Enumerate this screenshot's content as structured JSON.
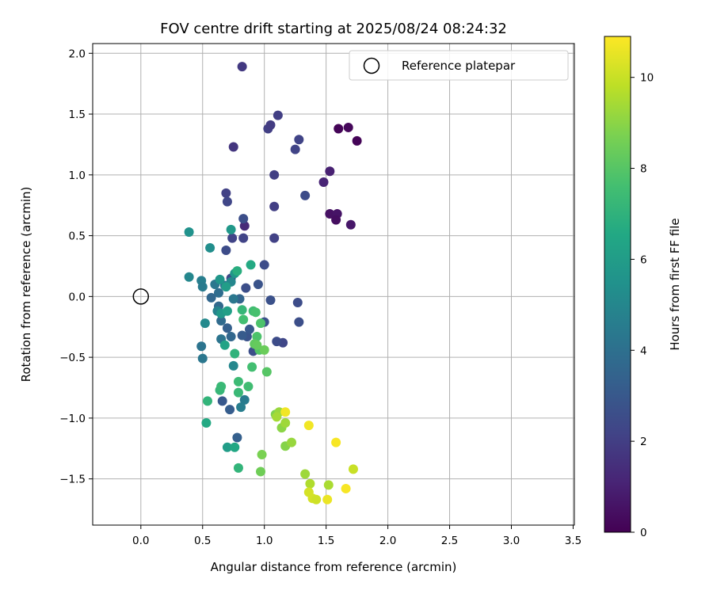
{
  "chart_data": {
    "type": "scatter",
    "title": "FOV centre drift starting at 2025/08/24 08:24:32",
    "xlabel": "Angular distance from reference (arcmin)",
    "ylabel": "Rotation from reference (arcmin)",
    "xlim": [
      -0.39,
      3.51
    ],
    "ylim": [
      -1.88,
      2.08
    ],
    "xticks": [
      0.0,
      0.5,
      1.0,
      1.5,
      2.0,
      2.5,
      3.0,
      3.5
    ],
    "xtick_labels": [
      "0.0",
      "0.5",
      "1.0",
      "1.5",
      "2.0",
      "2.5",
      "3.0",
      "3.5"
    ],
    "yticks": [
      -1.5,
      -1.0,
      -0.5,
      0.0,
      0.5,
      1.0,
      1.5,
      2.0
    ],
    "ytick_labels": [
      "−1.5",
      "−1.0",
      "−0.5",
      "0.0",
      "0.5",
      "1.0",
      "1.5",
      "2.0"
    ],
    "grid": true,
    "legend": {
      "placement": "top-right",
      "entries": [
        "Reference platepar"
      ]
    },
    "colorbar": {
      "label": "Hours from first FF file",
      "range": [
        0,
        10.9
      ],
      "ticks": [
        0,
        2,
        4,
        6,
        8,
        10
      ],
      "tick_labels": [
        "0",
        "2",
        "4",
        "6",
        "8",
        "10"
      ],
      "colormap": "viridis"
    },
    "reference_point": {
      "x": 0.0,
      "y": 0.0,
      "name": "Reference platepar"
    },
    "point_fields": [
      "x",
      "y",
      "hours"
    ],
    "points": [
      [
        1.6,
        1.38,
        0.1
      ],
      [
        1.68,
        1.39,
        0.2
      ],
      [
        1.75,
        1.28,
        0.1
      ],
      [
        1.53,
        0.68,
        0.5
      ],
      [
        1.59,
        0.68,
        0.6
      ],
      [
        1.58,
        0.63,
        0.4
      ],
      [
        1.7,
        0.59,
        0.7
      ],
      [
        1.53,
        1.03,
        1.0
      ],
      [
        1.48,
        0.94,
        1.1
      ],
      [
        0.84,
        0.58,
        1.3
      ],
      [
        0.82,
        1.89,
        1.8
      ],
      [
        0.75,
        1.23,
        1.7
      ],
      [
        1.03,
        1.38,
        2.0
      ],
      [
        1.11,
        1.49,
        2.0
      ],
      [
        1.05,
        1.41,
        1.9
      ],
      [
        1.28,
        1.29,
        2.2
      ],
      [
        1.25,
        1.21,
        2.2
      ],
      [
        1.08,
        1.0,
        2.0
      ],
      [
        1.33,
        0.83,
        2.5
      ],
      [
        0.69,
        0.85,
        2.1
      ],
      [
        0.7,
        0.78,
        2.3
      ],
      [
        1.08,
        0.74,
        2.0
      ],
      [
        0.83,
        0.64,
        2.6
      ],
      [
        0.74,
        0.48,
        2.2
      ],
      [
        0.83,
        0.48,
        2.2
      ],
      [
        1.08,
        0.48,
        2.1
      ],
      [
        0.69,
        0.38,
        2.5
      ],
      [
        1.0,
        0.26,
        2.5
      ],
      [
        0.73,
        0.15,
        2.4
      ],
      [
        0.85,
        0.07,
        2.6
      ],
      [
        0.95,
        0.1,
        2.8
      ],
      [
        1.05,
        -0.03,
        2.7
      ],
      [
        1.27,
        -0.05,
        2.5
      ],
      [
        1.28,
        -0.21,
        2.6
      ],
      [
        1.0,
        -0.21,
        2.7
      ],
      [
        1.15,
        -0.38,
        2.3
      ],
      [
        1.1,
        -0.37,
        2.5
      ],
      [
        0.91,
        -0.45,
        2.6
      ],
      [
        0.86,
        -0.33,
        2.8
      ],
      [
        0.88,
        -0.27,
        3.0
      ],
      [
        0.82,
        -0.32,
        3.1
      ],
      [
        0.66,
        -0.86,
        3.0
      ],
      [
        0.72,
        -0.93,
        3.2
      ],
      [
        0.78,
        -1.16,
        3.3
      ],
      [
        0.7,
        -0.26,
        3.3
      ],
      [
        0.73,
        -0.33,
        3.6
      ],
      [
        0.65,
        -0.2,
        3.8
      ],
      [
        0.63,
        -0.08,
        3.7
      ],
      [
        0.8,
        -0.02,
        3.5
      ],
      [
        0.63,
        0.03,
        3.9
      ],
      [
        0.57,
        -0.01,
        3.6
      ],
      [
        0.68,
        0.09,
        4.0
      ],
      [
        0.6,
        0.1,
        4.3
      ],
      [
        0.75,
        -0.02,
        4.3
      ],
      [
        0.65,
        -0.35,
        4.2
      ],
      [
        0.49,
        -0.41,
        4.2
      ],
      [
        0.5,
        -0.51,
        4.3
      ],
      [
        0.84,
        -0.85,
        4.5
      ],
      [
        0.81,
        -0.91,
        4.6
      ],
      [
        0.52,
        -0.22,
        5.1
      ],
      [
        0.49,
        0.13,
        4.6
      ],
      [
        0.5,
        0.08,
        4.5
      ],
      [
        0.39,
        0.16,
        5.0
      ],
      [
        0.73,
        0.12,
        5.0
      ],
      [
        0.62,
        -0.12,
        4.8
      ],
      [
        0.75,
        -0.57,
        5.0
      ],
      [
        0.56,
        0.4,
        5.3
      ],
      [
        0.39,
        0.53,
        5.5
      ],
      [
        0.73,
        0.55,
        5.8
      ],
      [
        0.76,
        0.19,
        5.7
      ],
      [
        0.64,
        0.14,
        5.7
      ],
      [
        0.69,
        0.08,
        6.0
      ],
      [
        0.65,
        -0.14,
        5.8
      ],
      [
        0.7,
        -0.12,
        6.1
      ],
      [
        0.68,
        -0.4,
        6.3
      ],
      [
        0.7,
        -1.24,
        6.0
      ],
      [
        0.76,
        -1.24,
        6.5
      ],
      [
        0.89,
        0.26,
        6.6
      ],
      [
        0.78,
        0.21,
        6.8
      ],
      [
        0.76,
        -0.47,
        7.0
      ],
      [
        0.53,
        -1.04,
        6.6
      ],
      [
        0.54,
        -0.86,
        7.1
      ],
      [
        0.64,
        -0.77,
        7.2
      ],
      [
        0.65,
        -0.74,
        7.3
      ],
      [
        0.79,
        -0.7,
        7.4
      ],
      [
        0.79,
        -0.79,
        7.3
      ],
      [
        0.79,
        -1.41,
        7.1
      ],
      [
        0.9,
        -0.58,
        7.6
      ],
      [
        0.87,
        -0.74,
        7.5
      ],
      [
        0.82,
        -0.11,
        7.2
      ],
      [
        0.83,
        -0.19,
        7.6
      ],
      [
        0.91,
        -0.12,
        7.5
      ],
      [
        0.93,
        -0.13,
        7.7
      ],
      [
        0.97,
        -0.22,
        7.8
      ],
      [
        0.94,
        -0.33,
        7.8
      ],
      [
        0.96,
        -0.44,
        7.9
      ],
      [
        1.02,
        -0.62,
        8.0
      ],
      [
        0.92,
        -0.39,
        8.2
      ],
      [
        0.94,
        -0.4,
        8.3
      ],
      [
        1.0,
        -0.44,
        8.4
      ],
      [
        0.97,
        -1.44,
        8.5
      ],
      [
        0.98,
        -1.3,
        8.7
      ],
      [
        1.09,
        -0.97,
        8.8
      ],
      [
        1.12,
        -0.95,
        9.2
      ],
      [
        1.1,
        -0.99,
        9.4
      ],
      [
        1.14,
        -1.08,
        9.0
      ],
      [
        1.17,
        -1.04,
        9.3
      ],
      [
        1.17,
        -1.23,
        8.9
      ],
      [
        1.22,
        -1.2,
        9.2
      ],
      [
        1.33,
        -1.46,
        9.3
      ],
      [
        1.37,
        -1.54,
        9.6
      ],
      [
        1.52,
        -1.55,
        9.5
      ],
      [
        1.36,
        -1.61,
        10.2
      ],
      [
        1.39,
        -1.66,
        10.2
      ],
      [
        1.42,
        -1.67,
        10.1
      ],
      [
        1.51,
        -1.67,
        10.6
      ],
      [
        1.17,
        -0.95,
        10.7
      ],
      [
        1.36,
        -1.06,
        10.7
      ],
      [
        1.58,
        -1.2,
        10.8
      ],
      [
        1.72,
        -1.42,
        10.0
      ],
      [
        1.66,
        -1.58,
        10.8
      ]
    ]
  }
}
